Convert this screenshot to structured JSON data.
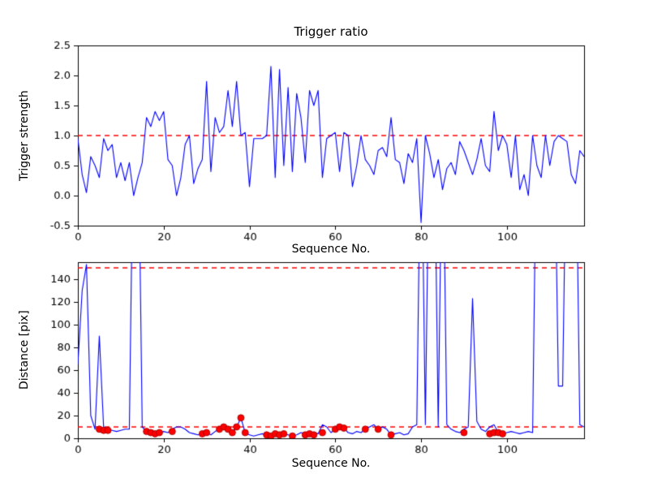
{
  "colors": {
    "background": "#ffffff",
    "axis": "#000000",
    "line": "#0000ff",
    "threshold": "#ff0000",
    "marker_face": "#ff0000",
    "marker_edge": "#990000"
  },
  "chart_data": [
    {
      "type": "line",
      "title": "Trigger ratio",
      "xlabel": "Sequence No.",
      "ylabel": "Trigger strength",
      "xlim": [
        0,
        118
      ],
      "ylim": [
        -0.5,
        2.5
      ],
      "xticks": [
        0,
        20,
        40,
        60,
        80,
        100
      ],
      "xtick_labels": [
        "0",
        "20",
        "40",
        "60",
        "80",
        "100"
      ],
      "yticks": [
        -0.5,
        0.0,
        0.5,
        1.0,
        1.5,
        2.0,
        2.5
      ],
      "ytick_labels": [
        "-0.5",
        "0.0",
        "0.5",
        "1.0",
        "1.5",
        "2.0",
        "2.5"
      ],
      "grid": false,
      "thresholds": [
        1.0
      ],
      "values": [
        0.95,
        0.35,
        0.05,
        0.65,
        0.5,
        0.3,
        0.95,
        0.75,
        0.85,
        0.3,
        0.55,
        0.25,
        0.55,
        0.0,
        0.3,
        0.55,
        1.3,
        1.15,
        1.4,
        1.25,
        1.4,
        0.6,
        0.5,
        0.0,
        0.3,
        0.85,
        1.0,
        0.2,
        0.45,
        0.6,
        1.9,
        0.4,
        1.3,
        1.05,
        1.15,
        1.75,
        1.15,
        1.9,
        1.0,
        1.05,
        0.15,
        0.95,
        0.95,
        0.95,
        1.0,
        2.15,
        0.3,
        2.1,
        0.5,
        1.8,
        0.4,
        1.7,
        1.3,
        0.55,
        1.75,
        1.5,
        1.75,
        0.3,
        0.95,
        1.0,
        1.05,
        0.4,
        1.05,
        1.0,
        0.15,
        0.5,
        1.0,
        0.6,
        0.5,
        0.35,
        0.75,
        0.8,
        0.65,
        1.3,
        0.6,
        0.55,
        0.2,
        0.7,
        0.55,
        0.95,
        -0.45,
        1.0,
        0.7,
        0.3,
        0.6,
        0.1,
        0.45,
        0.55,
        0.35,
        0.9,
        0.75,
        0.55,
        0.35,
        0.6,
        0.95,
        0.5,
        0.4,
        1.4,
        0.75,
        1.0,
        0.85,
        0.3,
        1.0,
        0.1,
        0.35,
        0.0,
        1.0,
        0.5,
        0.3,
        1.0,
        0.5,
        0.9,
        1.0,
        0.95,
        0.9,
        0.35,
        0.2,
        0.75,
        0.65
      ]
    },
    {
      "type": "line+scatter",
      "title": "",
      "xlabel": "Sequence No.",
      "ylabel": "Distance [pix]",
      "xlim": [
        0,
        118
      ],
      "ylim": [
        0,
        155
      ],
      "xticks": [
        0,
        20,
        40,
        60,
        80,
        100
      ],
      "xtick_labels": [
        "0",
        "20",
        "40",
        "60",
        "80",
        "100"
      ],
      "yticks": [
        0,
        20,
        40,
        60,
        80,
        100,
        120,
        140
      ],
      "ytick_labels": [
        "0",
        "20",
        "40",
        "60",
        "80",
        "100",
        "120",
        "140"
      ],
      "grid": false,
      "thresholds": [
        150,
        10
      ],
      "values": [
        65,
        130,
        153,
        20,
        8,
        90,
        10,
        8,
        7,
        6,
        7,
        8,
        8,
        300,
        300,
        10,
        6,
        5,
        4,
        5,
        6,
        5,
        8,
        10,
        10,
        8,
        5,
        4,
        3,
        4,
        5,
        3,
        6,
        8,
        10,
        8,
        5,
        10,
        18,
        5,
        3,
        2,
        3,
        4,
        3,
        2,
        5,
        3,
        4,
        3,
        2,
        3,
        5,
        4,
        3,
        5,
        4,
        12,
        10,
        5,
        8,
        10,
        9,
        5,
        4,
        6,
        5,
        8,
        10,
        12,
        8,
        10,
        8,
        3,
        4,
        5,
        3,
        4,
        10,
        12,
        300,
        12,
        300,
        300,
        10,
        300,
        12,
        8,
        6,
        5,
        8,
        10,
        123,
        15,
        8,
        6,
        10,
        12,
        5,
        4,
        5,
        6,
        5,
        4,
        5,
        6,
        5,
        300,
        300,
        300,
        300,
        300,
        46,
        46,
        300,
        300,
        300,
        12,
        10
      ],
      "trigger_points": [
        [
          5,
          8
        ],
        [
          6,
          7
        ],
        [
          7,
          7
        ],
        [
          16,
          6
        ],
        [
          17,
          5
        ],
        [
          18,
          4
        ],
        [
          19,
          5
        ],
        [
          22,
          6
        ],
        [
          29,
          4
        ],
        [
          30,
          5
        ],
        [
          33,
          8
        ],
        [
          34,
          10
        ],
        [
          35,
          8
        ],
        [
          36,
          5
        ],
        [
          37,
          10
        ],
        [
          38,
          18
        ],
        [
          39,
          5
        ],
        [
          44,
          3
        ],
        [
          45,
          2
        ],
        [
          46,
          4
        ],
        [
          47,
          3
        ],
        [
          48,
          4
        ],
        [
          50,
          2
        ],
        [
          53,
          3
        ],
        [
          54,
          4
        ],
        [
          55,
          3
        ],
        [
          57,
          5
        ],
        [
          60,
          8
        ],
        [
          61,
          10
        ],
        [
          62,
          9
        ],
        [
          67,
          8
        ],
        [
          70,
          8
        ],
        [
          73,
          3
        ],
        [
          90,
          5
        ],
        [
          96,
          4
        ],
        [
          97,
          5
        ],
        [
          98,
          5
        ],
        [
          99,
          4
        ]
      ]
    }
  ]
}
